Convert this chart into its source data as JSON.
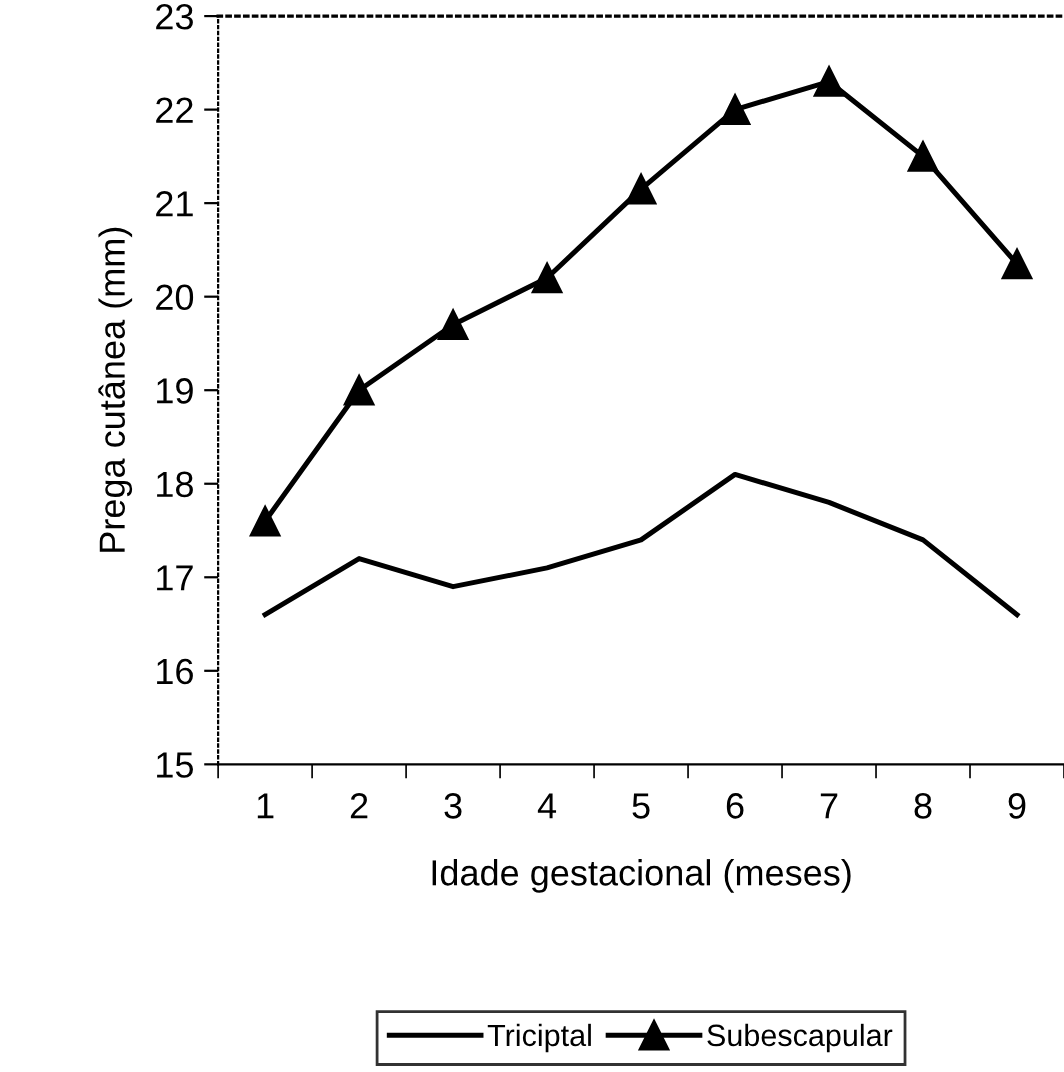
{
  "chart_data": {
    "type": "line",
    "xlabel": "Idade gestacional (meses)",
    "ylabel": "Prega cutânea (mm)",
    "categories": [
      "1",
      "2",
      "3",
      "4",
      "5",
      "6",
      "7",
      "8",
      "9"
    ],
    "series": [
      {
        "name": "Triciptal",
        "color": "#000000",
        "marker": "none",
        "values": [
          16.6,
          17.2,
          16.9,
          17.1,
          17.4,
          18.1,
          17.8,
          17.4,
          16.6
        ]
      },
      {
        "name": "Subescapular",
        "color": "#000000",
        "marker": "triangle",
        "values": [
          17.6,
          19.0,
          19.7,
          20.2,
          21.15,
          22.0,
          22.3,
          21.5,
          20.35
        ]
      }
    ],
    "ylim": [
      15,
      23
    ],
    "yticks": [
      15,
      16,
      17,
      18,
      19,
      20,
      21,
      22,
      23
    ],
    "grid": false,
    "legend": "bottom",
    "line_style": "solid"
  }
}
